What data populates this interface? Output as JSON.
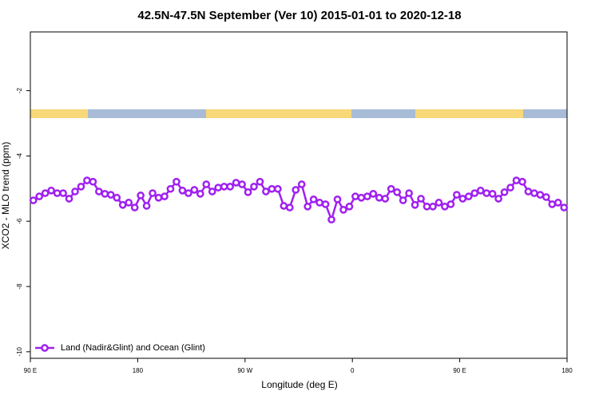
{
  "chart_data": {
    "type": "line",
    "title": "42.5N-47.5N September (Ver 10)   2015-01-01 to 2020-12-18",
    "x_label": "Longitude (deg E)",
    "y_label": "XCO2 - MLO trend (ppm)",
    "xlim": [
      90,
      540
    ],
    "xticks": [
      {
        "value": 90,
        "label": "90 E"
      },
      180,
      {
        "value": 270,
        "label": "90 W"
      },
      {
        "value": 360,
        "label": "0"
      },
      {
        "value": 450,
        "label": "90 E"
      },
      {
        "value": 540,
        "label": "180"
      }
    ],
    "ylim": [
      -10.2,
      -0.2
    ],
    "yticks": [
      -10,
      -8,
      -6,
      -4,
      -2
    ],
    "legend": "bottom-left",
    "series": [
      {
        "name": "Land (Nadir&Glint) and Ocean (Glint)",
        "color": "#a020f0",
        "x": [
          92.5,
          97.5,
          102.5,
          107.5,
          112.5,
          117.5,
          122.5,
          127.5,
          132.5,
          137.5,
          142.5,
          147.5,
          152.5,
          157.5,
          162.5,
          167.5,
          172.5,
          177.5,
          182.5,
          187.5,
          192.5,
          197.5,
          202.5,
          207.5,
          212.5,
          217.5,
          222.5,
          227.5,
          232.5,
          237.5,
          242.5,
          247.5,
          252.5,
          257.5,
          262.5,
          267.5,
          272.5,
          277.5,
          282.5,
          287.5,
          292.5,
          297.5,
          302.5,
          307.5,
          312.5,
          317.5,
          322.5,
          327.5,
          332.5,
          337.5,
          342.5,
          347.5,
          352.5,
          357.5,
          362.5,
          367.5,
          372.5,
          377.5,
          382.5,
          387.5,
          392.5,
          397.5,
          402.5,
          407.5,
          412.5,
          417.5,
          422.5,
          427.5,
          432.5,
          437.5,
          442.5,
          447.5,
          452.5,
          457.5,
          462.5,
          467.5,
          472.5,
          477.5,
          482.5,
          487.5,
          492.5,
          497.5,
          502.5,
          507.5,
          512.5,
          517.5,
          522.5,
          527.5,
          532.5,
          537.5
        ],
        "values": [
          -5.36,
          -5.24,
          -5.14,
          -5.06,
          -5.14,
          -5.14,
          -5.31,
          -5.09,
          -4.94,
          -4.75,
          -4.79,
          -5.09,
          -5.16,
          -5.19,
          -5.28,
          -5.5,
          -5.43,
          -5.58,
          -5.21,
          -5.53,
          -5.14,
          -5.28,
          -5.24,
          -5.01,
          -4.79,
          -5.06,
          -5.14,
          -5.04,
          -5.16,
          -4.87,
          -5.09,
          -4.97,
          -4.94,
          -4.94,
          -4.82,
          -4.87,
          -5.11,
          -4.94,
          -4.79,
          -5.09,
          -5.01,
          -5.01,
          -5.53,
          -5.58,
          -5.04,
          -4.87,
          -5.55,
          -5.33,
          -5.43,
          -5.48,
          -5.95,
          -5.33,
          -5.65,
          -5.55,
          -5.24,
          -5.28,
          -5.24,
          -5.16,
          -5.28,
          -5.31,
          -5.01,
          -5.11,
          -5.36,
          -5.14,
          -5.5,
          -5.31,
          -5.55,
          -5.55,
          -5.43,
          -5.55,
          -5.48,
          -5.19,
          -5.31,
          -5.24,
          -5.14,
          -5.06,
          -5.14,
          -5.16,
          -5.31,
          -5.11,
          -4.97,
          -4.75,
          -4.79,
          -5.09,
          -5.14,
          -5.19,
          -5.26,
          -5.48,
          -5.43,
          -5.58
        ]
      }
    ]
  }
}
